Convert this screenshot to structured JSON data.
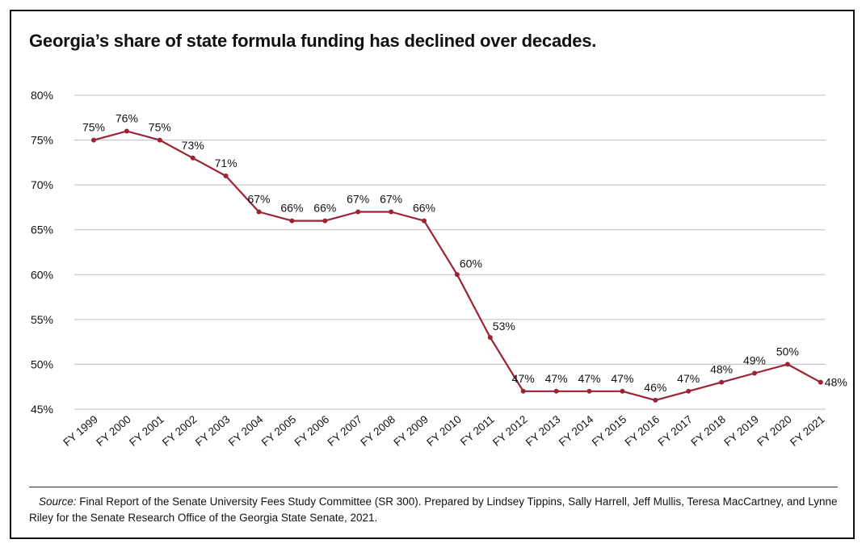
{
  "title": "Georgia’s share of state formula funding has declined over decades.",
  "source": {
    "label": "Source:",
    "text": "Final Report of the Senate University Fees Study Committee (SR 300). Prepared by Lindsey Tippins, Sally Harrell, Jeff Mullis, Teresa MacCartney, and Lynne Riley for the Senate Research Office of the Georgia State Senate, 2021."
  },
  "colors": {
    "line": "#9b2335",
    "grid": "#bdbdbd",
    "text": "#111111"
  },
  "chart_data": {
    "type": "line",
    "title": "Georgia’s share of state formula funding has declined over decades.",
    "xlabel": "",
    "ylabel": "",
    "ylim": [
      45,
      80
    ],
    "yticks": [
      80,
      75,
      70,
      65,
      60,
      55,
      50,
      45
    ],
    "ytick_labels": [
      "80%",
      "75%",
      "70%",
      "65%",
      "60%",
      "55%",
      "50%",
      "45%"
    ],
    "grid": "horizontal",
    "legend": "none",
    "categories": [
      "FY 1999",
      "FY 2000",
      "FY 2001",
      "FY 2002",
      "FY 2003",
      "FY 2004",
      "FY 2005",
      "FY 2006",
      "FY 2007",
      "FY 2008",
      "FY 2009",
      "FY 2010",
      "FY 2011",
      "FY 2012",
      "FY 2013",
      "FY 2014",
      "FY 2015",
      "FY 2016",
      "FY 2017",
      "FY 2018",
      "FY 2019",
      "FY 2020",
      "FY 2021"
    ],
    "values": [
      75,
      76,
      75,
      73,
      71,
      67,
      66,
      66,
      67,
      67,
      66,
      60,
      53,
      47,
      47,
      47,
      47,
      46,
      47,
      48,
      49,
      50,
      48
    ],
    "data_labels": [
      "75%",
      "76%",
      "75%",
      "73%",
      "71%",
      "67%",
      "66%",
      "66%",
      "67%",
      "67%",
      "66%",
      "60%",
      "53%",
      "47%",
      "47%",
      "47%",
      "47%",
      "46%",
      "47%",
      "48%",
      "49%",
      "50%",
      "48%"
    ]
  }
}
